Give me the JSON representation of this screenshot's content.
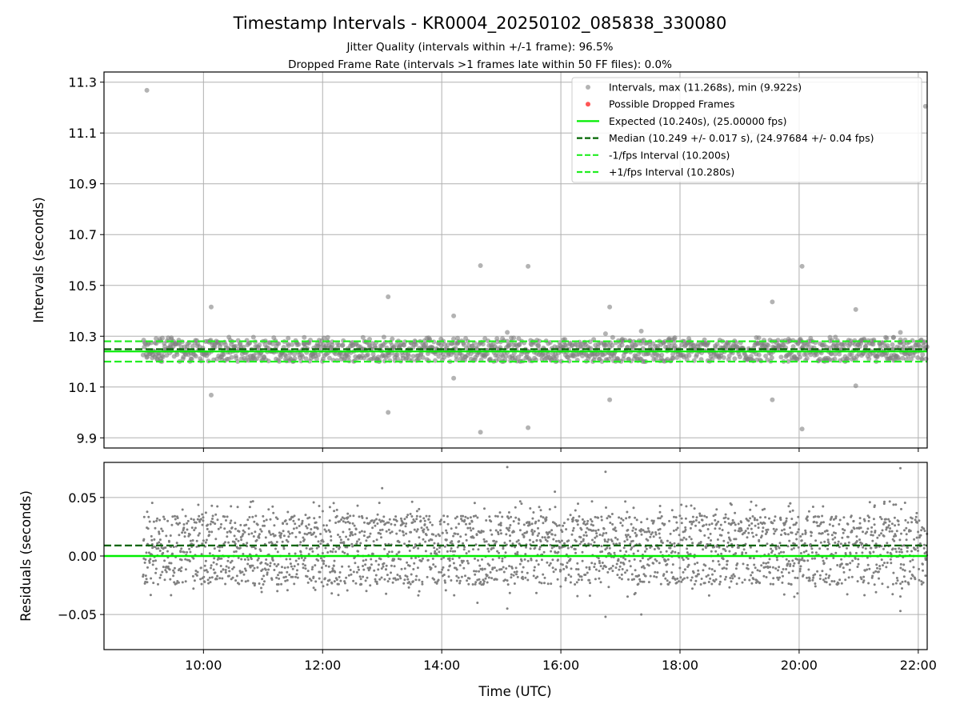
{
  "chart_data": {
    "type": "scatter",
    "title": "Timestamp Intervals - KR0004_20250102_085838_330080",
    "subtitles": [
      "Jitter Quality (intervals within +/-1 frame): 96.5%",
      "Dropped Frame Rate (intervals >1 frames late within 50 FF files): 0.0%"
    ],
    "xlabel": "Time (UTC)",
    "x_ticks": [
      "10:00",
      "12:00",
      "14:00",
      "16:00",
      "18:00",
      "20:00",
      "22:00"
    ],
    "x_tick_hours": [
      10,
      12,
      14,
      16,
      18,
      20,
      22
    ],
    "xlim_hours": [
      8.33,
      22.15
    ],
    "data_span_hours": [
      8.98,
      22.15
    ],
    "colors": {
      "scatter": "#808080",
      "expected": "#00ee00",
      "median": "#006400",
      "interval_bounds": "#22ee22",
      "dropped": "#ff5555",
      "grid": "#b0b0b0"
    },
    "top_panel": {
      "ylabel": "Intervals (seconds)",
      "ylim": [
        9.86,
        11.34
      ],
      "y_ticks": [
        "9.9",
        "10.1",
        "10.3",
        "10.5",
        "10.7",
        "10.9",
        "11.1",
        "11.3"
      ],
      "y_tick_values": [
        9.9,
        10.1,
        10.3,
        10.5,
        10.7,
        10.9,
        11.1,
        11.3
      ],
      "expected": 10.24,
      "median": 10.249,
      "lower_interval": 10.2,
      "upper_interval": 10.28,
      "band_low": 10.2,
      "band_high": 10.285,
      "outliers": [
        [
          9.05,
          11.268
        ],
        [
          10.13,
          10.415
        ],
        [
          10.13,
          10.068
        ],
        [
          13.1,
          10.455
        ],
        [
          13.1,
          10.0
        ],
        [
          14.2,
          10.38
        ],
        [
          14.2,
          10.135
        ],
        [
          14.65,
          10.578
        ],
        [
          14.65,
          9.922
        ],
        [
          15.1,
          10.315
        ],
        [
          15.45,
          10.575
        ],
        [
          15.45,
          9.94
        ],
        [
          16.75,
          10.31
        ],
        [
          16.82,
          10.415
        ],
        [
          16.82,
          10.05
        ],
        [
          17.35,
          10.32
        ],
        [
          19.55,
          10.435
        ],
        [
          19.55,
          10.05
        ],
        [
          20.05,
          10.575
        ],
        [
          20.05,
          9.935
        ],
        [
          20.95,
          10.405
        ],
        [
          20.95,
          10.105
        ],
        [
          21.7,
          10.315
        ],
        [
          22.12,
          11.205
        ]
      ]
    },
    "bottom_panel": {
      "ylabel": "Residuals (seconds)",
      "ylim": [
        -0.08,
        0.08
      ],
      "y_ticks": [
        "0.05",
        "0.00",
        "−0.05"
      ],
      "y_tick_values": [
        0.05,
        0.0,
        -0.05
      ],
      "expected_residual": 0.0,
      "median_residual": 0.009,
      "residual_levels": [
        0.03,
        0.02,
        0.01,
        0.0,
        -0.01,
        -0.02
      ],
      "outliers": [
        [
          15.1,
          0.076
        ],
        [
          16.75,
          0.072
        ],
        [
          21.7,
          0.075
        ],
        [
          13.0,
          0.058
        ],
        [
          15.9,
          0.055
        ],
        [
          16.75,
          -0.052
        ],
        [
          17.35,
          -0.05
        ],
        [
          21.7,
          -0.047
        ],
        [
          15.1,
          -0.045
        ],
        [
          14.6,
          -0.04
        ]
      ]
    },
    "legend": {
      "placement": "top-right",
      "entries": [
        "Intervals, max (11.268s), min (9.922s)",
        "Possible Dropped Frames",
        "Expected (10.240s), (25.00000 fps)",
        "Median (10.249 +/- 0.017 s), (24.97684 +/- 0.04 fps)",
        "-1/fps Interval (10.200s)",
        "+1/fps Interval (10.280s)"
      ]
    }
  }
}
